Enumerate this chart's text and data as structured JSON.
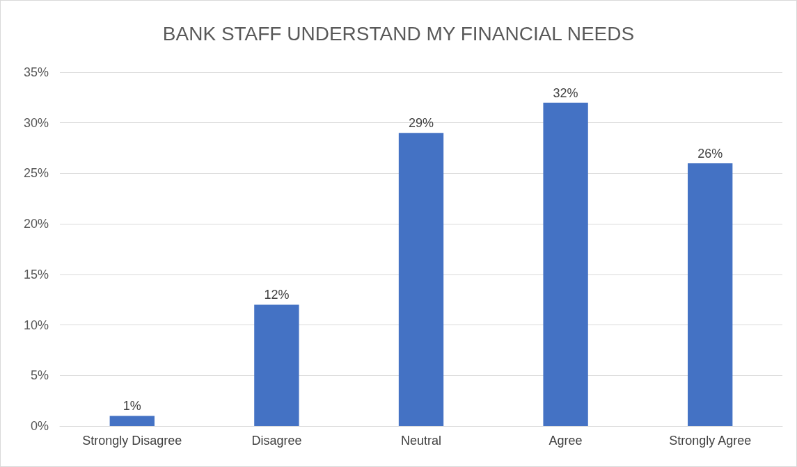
{
  "chart_data": {
    "type": "bar",
    "title": "BANK STAFF UNDERSTAND MY FINANCIAL NEEDS",
    "categories": [
      "Strongly Disagree",
      "Disagree",
      "Neutral",
      "Agree",
      "Strongly Agree"
    ],
    "values": [
      1,
      12,
      29,
      32,
      26
    ],
    "value_labels": [
      "1%",
      "12%",
      "29%",
      "32%",
      "26%"
    ],
    "color": "#4472c4",
    "ylim": [
      0,
      35
    ],
    "yticks": [
      {
        "value": 0,
        "label": "0%"
      },
      {
        "value": 5,
        "label": "5%"
      },
      {
        "value": 10,
        "label": "10%"
      },
      {
        "value": 15,
        "label": "15%"
      },
      {
        "value": 20,
        "label": "20%"
      },
      {
        "value": 25,
        "label": "25%"
      },
      {
        "value": 30,
        "label": "30%"
      },
      {
        "value": 35,
        "label": "35%"
      }
    ],
    "grid": "y"
  }
}
